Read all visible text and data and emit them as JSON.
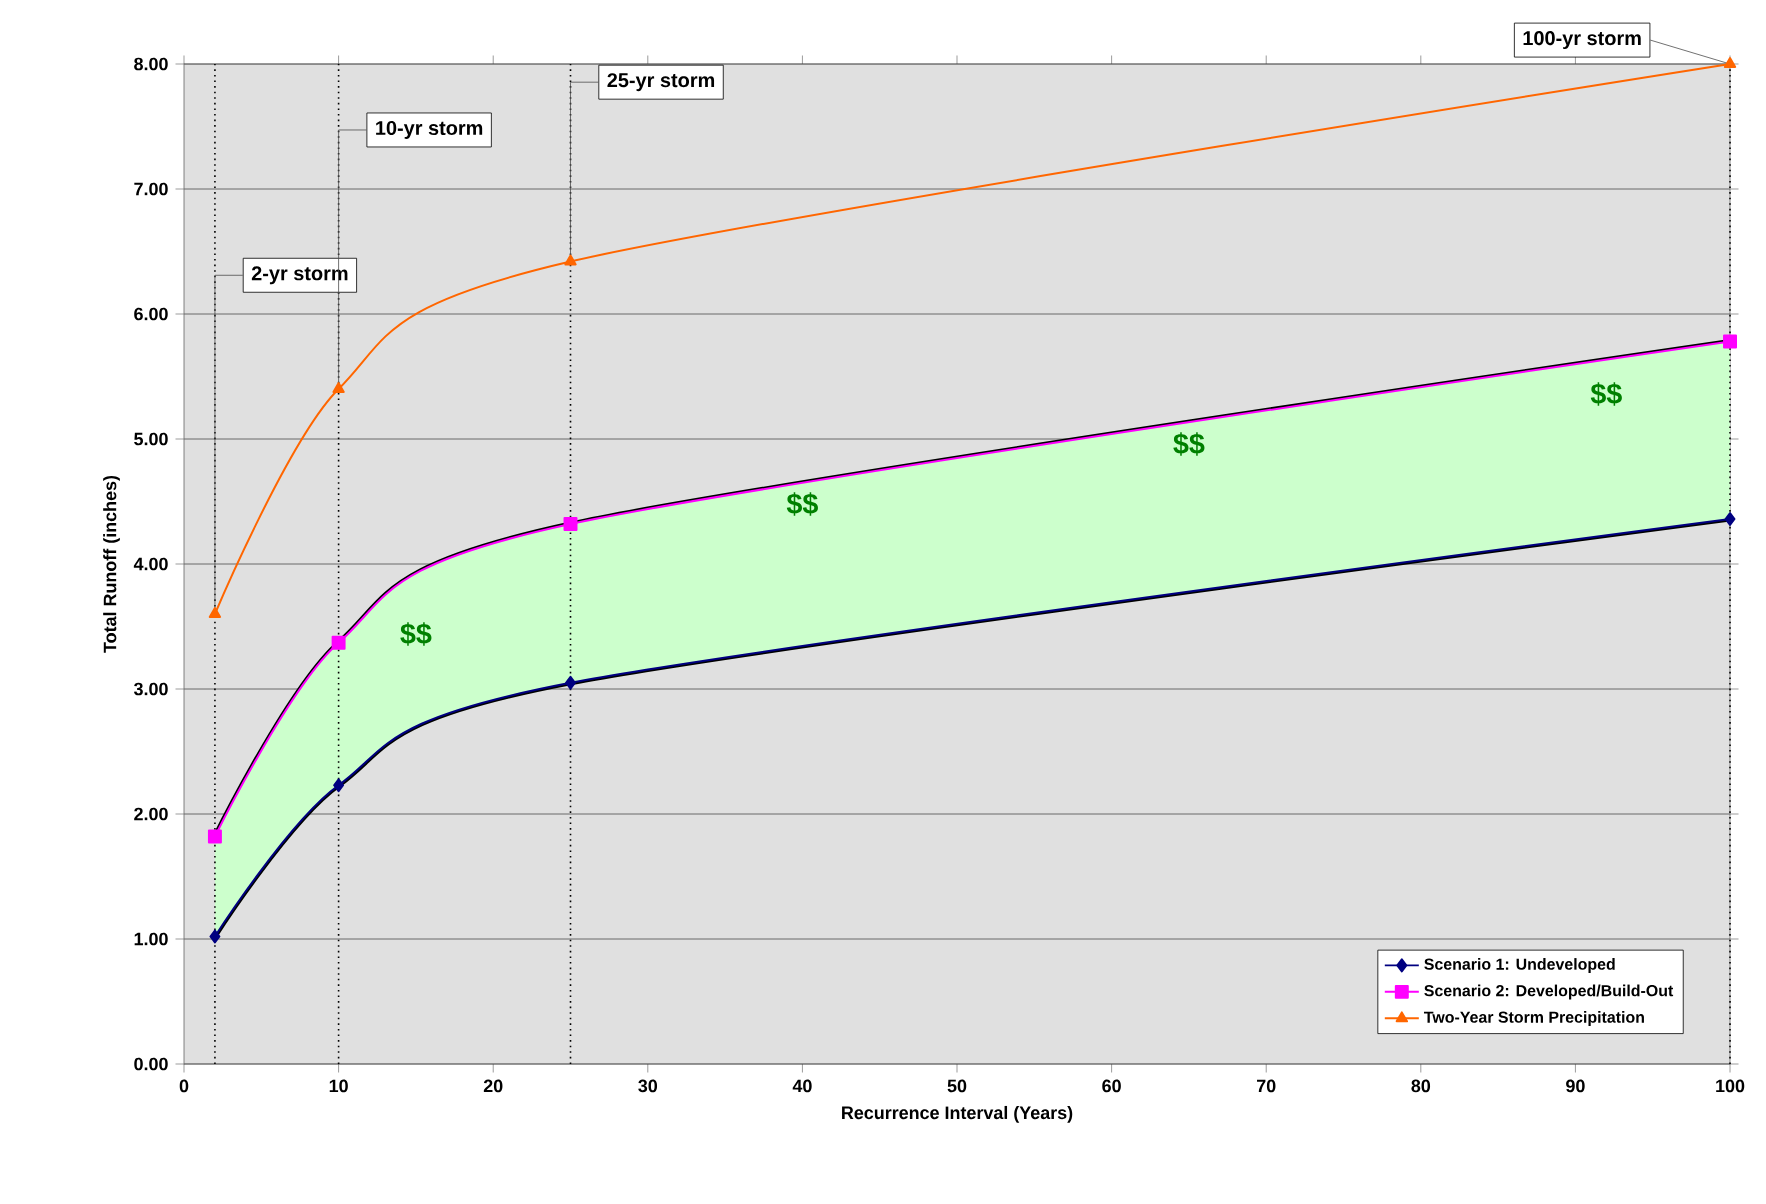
{
  "chart_data": {
    "type": "line",
    "xlabel": "Recurrence Interval (Years)",
    "ylabel": "Total Runoff (inches)",
    "x": [
      2,
      10,
      25,
      100
    ],
    "series": [
      {
        "name": "Scenario 1: Undeveloped",
        "color": "#000080",
        "marker": "diamond",
        "values": [
          1.02,
          2.23,
          3.05,
          4.36
        ]
      },
      {
        "name": "Scenario 2: Developed/Build-Out",
        "color": "#ff00ff",
        "marker": "square",
        "values": [
          1.82,
          3.37,
          4.32,
          5.78
        ],
        "lower": [
          1.02,
          2.23,
          3.05,
          4.36
        ],
        "upper": [
          1.82,
          3.37,
          4.32,
          5.78
        ]
      },
      {
        "name": "Two-Year Storm Precipitation",
        "color": "#ff6600",
        "marker": "triangle",
        "values": [
          3.6,
          5.4,
          6.42,
          8.0
        ]
      }
    ],
    "xlim": [
      0,
      100
    ],
    "xticks": [
      0,
      10,
      20,
      30,
      40,
      50,
      60,
      70,
      80,
      90,
      100
    ],
    "ylim": [
      0,
      8
    ],
    "yticks": [
      {
        "value": 0,
        "label": "0.00"
      },
      {
        "value": 1,
        "label": "1.00"
      },
      {
        "value": 2,
        "label": "2.00"
      },
      {
        "value": 3,
        "label": "3.00"
      },
      {
        "value": 4,
        "label": "4.00"
      },
      {
        "value": 5,
        "label": "5.00"
      },
      {
        "value": 6,
        "label": "6.00"
      },
      {
        "value": 7,
        "label": "7.00"
      },
      {
        "value": 8,
        "label": "8.00"
      }
    ],
    "grid": "y",
    "legend": "bottom right",
    "ref_lines": [
      {
        "axis": "x",
        "value": 2,
        "line_style": "dotted",
        "color": "#000000"
      },
      {
        "axis": "x",
        "value": 10,
        "line_style": "dotted",
        "color": "#000000"
      },
      {
        "axis": "x",
        "value": 25,
        "line_style": "dotted",
        "color": "#000000"
      },
      {
        "axis": "x",
        "value": 100,
        "line_style": "dotted",
        "color": "#000000"
      }
    ],
    "annotations": [
      {
        "text": "2-yr storm",
        "x": 2,
        "y": 3.6
      },
      {
        "text": "10-yr storm",
        "x": 10,
        "y": 5.4
      },
      {
        "text": "25-yr storm",
        "x": 25,
        "y": 6.42
      },
      {
        "text": "100-yr storm",
        "x": 100,
        "y": 8.0
      },
      "$$",
      "$$",
      "$$",
      "$$"
    ]
  }
}
